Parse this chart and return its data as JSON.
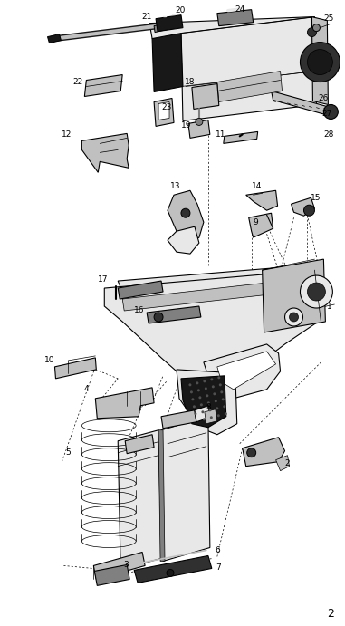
{
  "background_color": "#ffffff",
  "fig_width": 3.81,
  "fig_height": 6.91,
  "dpi": 100,
  "page_number": "2",
  "gray_light": "#e8e8e8",
  "gray_mid": "#c0c0c0",
  "gray_dark": "#808080",
  "black": "#000000",
  "dark": "#303030",
  "very_dark": "#181818"
}
